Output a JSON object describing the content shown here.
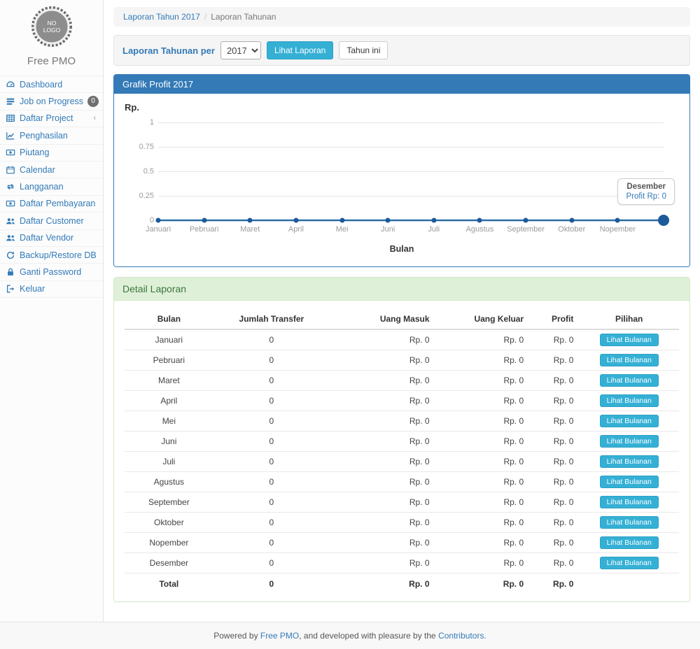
{
  "brand": {
    "logo_line1": "NO",
    "logo_line2": "LOGO",
    "name": "Free PMO"
  },
  "sidebar": {
    "items": [
      {
        "label": "Dashboard",
        "icon": "dashboard-icon"
      },
      {
        "label": "Job on Progress",
        "icon": "tasks-icon",
        "badge": "0"
      },
      {
        "label": "Daftar Project",
        "icon": "table-icon",
        "chevron": "‹"
      },
      {
        "label": "Penghasilan",
        "icon": "line-chart-icon"
      },
      {
        "label": "Piutang",
        "icon": "money-icon"
      },
      {
        "label": "Calendar",
        "icon": "calendar-icon"
      },
      {
        "label": "Langganan",
        "icon": "retweet-icon"
      },
      {
        "label": "Daftar Pembayaran",
        "icon": "money-icon"
      },
      {
        "label": "Daftar Customer",
        "icon": "users-icon"
      },
      {
        "label": "Daftar Vendor",
        "icon": "users-icon"
      },
      {
        "label": "Backup/Restore DB",
        "icon": "refresh-icon"
      },
      {
        "label": "Ganti Password",
        "icon": "lock-icon"
      },
      {
        "label": "Keluar",
        "icon": "sign-out-icon"
      }
    ]
  },
  "breadcrumb": {
    "link": "Laporan Tahun 2017",
    "separator": "/",
    "current": "Laporan Tahunan"
  },
  "filter": {
    "label": "Laporan Tahunan per",
    "year_selected": "2017",
    "view_button": "Lihat Laporan",
    "this_year_button": "Tahun ini"
  },
  "chart_data": {
    "type": "line",
    "title": "Grafik Profit 2017",
    "ylabel": "Rp.",
    "xlabel": "Bulan",
    "categories": [
      "Januari",
      "Pebruari",
      "Maret",
      "April",
      "Mei",
      "Juni",
      "Juli",
      "Agustus",
      "September",
      "Oktober",
      "Nopember",
      "Desember"
    ],
    "values": [
      0,
      0,
      0,
      0,
      0,
      0,
      0,
      0,
      0,
      0,
      0,
      0
    ],
    "yticks": [
      0,
      0.25,
      0.5,
      0.75,
      1
    ],
    "ylim": [
      0,
      1
    ],
    "grid": true,
    "hide_last_xlabel": true,
    "highlight_last_point": true,
    "line_color": "#2a6da5",
    "point_color": "#1b5a9b",
    "tooltip": {
      "label": "Desember",
      "value": "Profit Rp: 0"
    }
  },
  "report": {
    "title": "Detail Laporan",
    "columns": [
      "Bulan",
      "Jumlah Transfer",
      "Uang Masuk",
      "Uang Keluar",
      "Profit",
      "Pilihan"
    ],
    "action_label": "Lihat Bulanan",
    "rows": [
      {
        "bulan": "Januari",
        "transfer": "0",
        "masuk": "Rp. 0",
        "keluar": "Rp. 0",
        "profit": "Rp. 0"
      },
      {
        "bulan": "Pebruari",
        "transfer": "0",
        "masuk": "Rp. 0",
        "keluar": "Rp. 0",
        "profit": "Rp. 0"
      },
      {
        "bulan": "Maret",
        "transfer": "0",
        "masuk": "Rp. 0",
        "keluar": "Rp. 0",
        "profit": "Rp. 0"
      },
      {
        "bulan": "April",
        "transfer": "0",
        "masuk": "Rp. 0",
        "keluar": "Rp. 0",
        "profit": "Rp. 0"
      },
      {
        "bulan": "Mei",
        "transfer": "0",
        "masuk": "Rp. 0",
        "keluar": "Rp. 0",
        "profit": "Rp. 0"
      },
      {
        "bulan": "Juni",
        "transfer": "0",
        "masuk": "Rp. 0",
        "keluar": "Rp. 0",
        "profit": "Rp. 0"
      },
      {
        "bulan": "Juli",
        "transfer": "0",
        "masuk": "Rp. 0",
        "keluar": "Rp. 0",
        "profit": "Rp. 0"
      },
      {
        "bulan": "Agustus",
        "transfer": "0",
        "masuk": "Rp. 0",
        "keluar": "Rp. 0",
        "profit": "Rp. 0"
      },
      {
        "bulan": "September",
        "transfer": "0",
        "masuk": "Rp. 0",
        "keluar": "Rp. 0",
        "profit": "Rp. 0"
      },
      {
        "bulan": "Oktober",
        "transfer": "0",
        "masuk": "Rp. 0",
        "keluar": "Rp. 0",
        "profit": "Rp. 0"
      },
      {
        "bulan": "Nopember",
        "transfer": "0",
        "masuk": "Rp. 0",
        "keluar": "Rp. 0",
        "profit": "Rp. 0"
      },
      {
        "bulan": "Desember",
        "transfer": "0",
        "masuk": "Rp. 0",
        "keluar": "Rp. 0",
        "profit": "Rp. 0"
      }
    ],
    "total": {
      "label": "Total",
      "transfer": "0",
      "masuk": "Rp. 0",
      "keluar": "Rp. 0",
      "profit": "Rp. 0"
    }
  },
  "footer": {
    "prefix": "Powered by ",
    "link1": "Free PMO",
    "middle": ", and developed with pleasure by the ",
    "link2": "Contributors."
  },
  "colors": {
    "accent_blue": "#337ab7",
    "panel_header_blue": "#337ab7",
    "info_button_cyan": "#35b0d5",
    "success_header_bg": "#dff0d8",
    "success_text": "#3c763d",
    "chart_line": "#2a6da5",
    "chart_point": "#1b5a9b"
  }
}
